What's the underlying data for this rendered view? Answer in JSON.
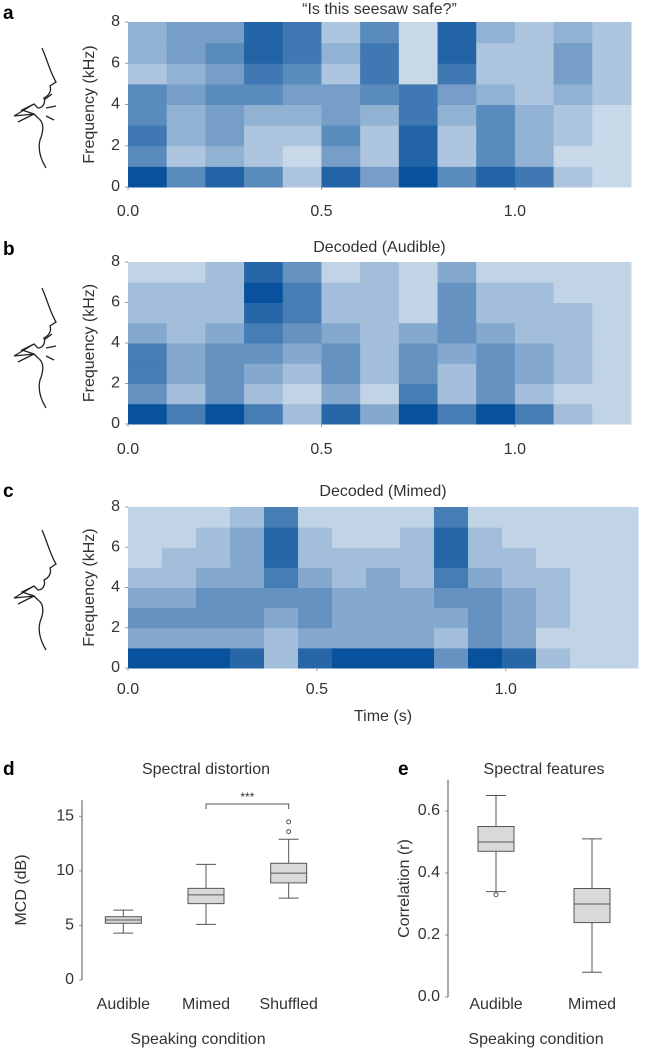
{
  "chart_data": [
    {
      "type": "spectrogram",
      "panel": "a",
      "title": "“Is this seesaw safe?”",
      "ylabel": "Frequency (kHz)",
      "xlim": [
        0,
        1.3
      ],
      "xticks": [
        {
          "value": 0,
          "label": "0.0"
        },
        0.5,
        {
          "value": 1,
          "label": "1.0"
        }
      ],
      "ylim": [
        0,
        8
      ],
      "yticks": [
        0,
        2,
        4,
        6,
        8
      ],
      "colormap": [
        "#ffffff",
        "#08519c"
      ],
      "z": [
        [
          9,
          6,
          7,
          6,
          6,
          3,
          4,
          4
        ],
        [
          6,
          3,
          4,
          4,
          5,
          4,
          5,
          5
        ],
        [
          8,
          4,
          5,
          5,
          6,
          5,
          6,
          5
        ],
        [
          6,
          3,
          3,
          4,
          6,
          7,
          8,
          8
        ],
        [
          3,
          2,
          3,
          4,
          5,
          6,
          7,
          7
        ],
        [
          8,
          5,
          6,
          5,
          5,
          3,
          4,
          3
        ],
        [
          5,
          3,
          3,
          4,
          6,
          7,
          7,
          6
        ],
        [
          9,
          8,
          8,
          7,
          7,
          2,
          2,
          2
        ],
        [
          6,
          3,
          3,
          4,
          5,
          7,
          8,
          8
        ],
        [
          8,
          6,
          6,
          6,
          4,
          3,
          3,
          4
        ],
        [
          7,
          4,
          4,
          4,
          3,
          3,
          3,
          3
        ],
        [
          3,
          2,
          3,
          3,
          4,
          5,
          5,
          4
        ],
        [
          2,
          2,
          2,
          2,
          3,
          3,
          3,
          3
        ]
      ]
    },
    {
      "type": "spectrogram",
      "panel": "b",
      "title": "Decoded (Audible)",
      "ylabel": "Frequency (kHz)",
      "xlim": [
        0,
        1.3
      ],
      "xticks": [
        {
          "value": 0,
          "label": "0.0"
        },
        0.5,
        {
          "value": 1,
          "label": "1.0"
        }
      ],
      "ylim": [
        0,
        8
      ],
      "yticks": [
        0,
        2,
        4,
        6,
        8
      ],
      "colormap": [
        "#ffffff",
        "#08519c"
      ],
      "z": [
        [
          8,
          5,
          6,
          6,
          4,
          3,
          3,
          2
        ],
        [
          6,
          3,
          4,
          4,
          3,
          3,
          3,
          2
        ],
        [
          8,
          5,
          5,
          5,
          4,
          3,
          3,
          3
        ],
        [
          6,
          3,
          4,
          5,
          6,
          7,
          8,
          7
        ],
        [
          3,
          2,
          3,
          4,
          5,
          6,
          6,
          5
        ],
        [
          7,
          4,
          5,
          5,
          4,
          3,
          3,
          2
        ],
        [
          4,
          2,
          3,
          3,
          3,
          3,
          3,
          3
        ],
        [
          8,
          6,
          5,
          5,
          4,
          2,
          2,
          2
        ],
        [
          6,
          3,
          3,
          4,
          5,
          5,
          5,
          4
        ],
        [
          8,
          5,
          5,
          5,
          4,
          3,
          3,
          2
        ],
        [
          6,
          3,
          4,
          4,
          3,
          3,
          3,
          2
        ],
        [
          3,
          2,
          3,
          3,
          3,
          3,
          2,
          2
        ],
        [
          2,
          2,
          2,
          2,
          2,
          2,
          2,
          2
        ]
      ]
    },
    {
      "type": "spectrogram",
      "panel": "c",
      "title": "Decoded (Mimed)",
      "ylabel": "Frequency (kHz)",
      "xlabel": "Time (s)",
      "xlim": [
        0,
        1.35
      ],
      "xticks": [
        {
          "value": 0,
          "label": "0.0"
        },
        0.5,
        {
          "value": 1,
          "label": "1.0"
        }
      ],
      "ylim": [
        0,
        8
      ],
      "yticks": [
        0,
        2,
        4,
        6,
        8
      ],
      "colormap": [
        "#ffffff",
        "#08519c"
      ],
      "z": [
        [
          8,
          4,
          5,
          4,
          3,
          2,
          2,
          2
        ],
        [
          8,
          4,
          5,
          4,
          3,
          3,
          2,
          2
        ],
        [
          8,
          4,
          5,
          5,
          4,
          3,
          3,
          2
        ],
        [
          7,
          4,
          5,
          5,
          4,
          4,
          4,
          3
        ],
        [
          3,
          3,
          4,
          5,
          6,
          7,
          7,
          6
        ],
        [
          7,
          4,
          5,
          5,
          4,
          3,
          3,
          2
        ],
        [
          8,
          4,
          4,
          4,
          3,
          3,
          2,
          2
        ],
        [
          8,
          4,
          4,
          4,
          4,
          3,
          2,
          2
        ],
        [
          8,
          4,
          4,
          4,
          3,
          3,
          3,
          2
        ],
        [
          5,
          3,
          4,
          5,
          6,
          7,
          7,
          6
        ],
        [
          8,
          5,
          5,
          5,
          4,
          3,
          3,
          2
        ],
        [
          7,
          4,
          4,
          4,
          3,
          3,
          2,
          2
        ],
        [
          3,
          2,
          3,
          3,
          3,
          2,
          2,
          2
        ],
        [
          2,
          2,
          2,
          2,
          2,
          2,
          2,
          2
        ],
        [
          2,
          2,
          2,
          2,
          2,
          2,
          2,
          2
        ]
      ]
    },
    {
      "type": "box",
      "panel": "d",
      "title": "Spectral distortion",
      "ylabel": "MCD (dB)",
      "xlabel": "Speaking condition",
      "categories": [
        "Audible",
        "Mimed",
        "Shuffled"
      ],
      "color": "#d9d9d9",
      "ylim": [
        0,
        16.5
      ],
      "yticks": [
        0,
        5,
        10,
        15
      ],
      "boxes": [
        {
          "low": 4.3,
          "q1": 5.2,
          "median": 5.5,
          "q3": 5.8,
          "high": 6.4,
          "outliers": []
        },
        {
          "low": 5.1,
          "q1": 7.0,
          "median": 7.8,
          "q3": 8.4,
          "high": 10.6,
          "outliers": []
        },
        {
          "low": 7.5,
          "q1": 8.9,
          "median": 9.8,
          "q3": 10.7,
          "high": 12.9,
          "outliers": [
            13.6,
            14.5
          ]
        }
      ],
      "significance": {
        "label": "***",
        "pair": [
          "Mimed",
          "Shuffled"
        ]
      }
    },
    {
      "type": "box",
      "panel": "e",
      "title": "Spectral features",
      "ylabel": "Correlation (r)",
      "xlabel": "Speaking condition",
      "categories": [
        "Audible",
        "Mimed"
      ],
      "color": "#d9d9d9",
      "ylim": [
        0,
        0.7
      ],
      "yticks": [
        {
          "value": 0,
          "label": "0.0"
        },
        0.2,
        0.4,
        0.6
      ],
      "boxes": [
        {
          "low": 0.34,
          "q1": 0.47,
          "median": 0.5,
          "q3": 0.55,
          "high": 0.65,
          "outliers": [
            0.33
          ]
        },
        {
          "low": 0.08,
          "q1": 0.24,
          "median": 0.3,
          "q3": 0.35,
          "high": 0.51,
          "outliers": []
        }
      ]
    }
  ]
}
